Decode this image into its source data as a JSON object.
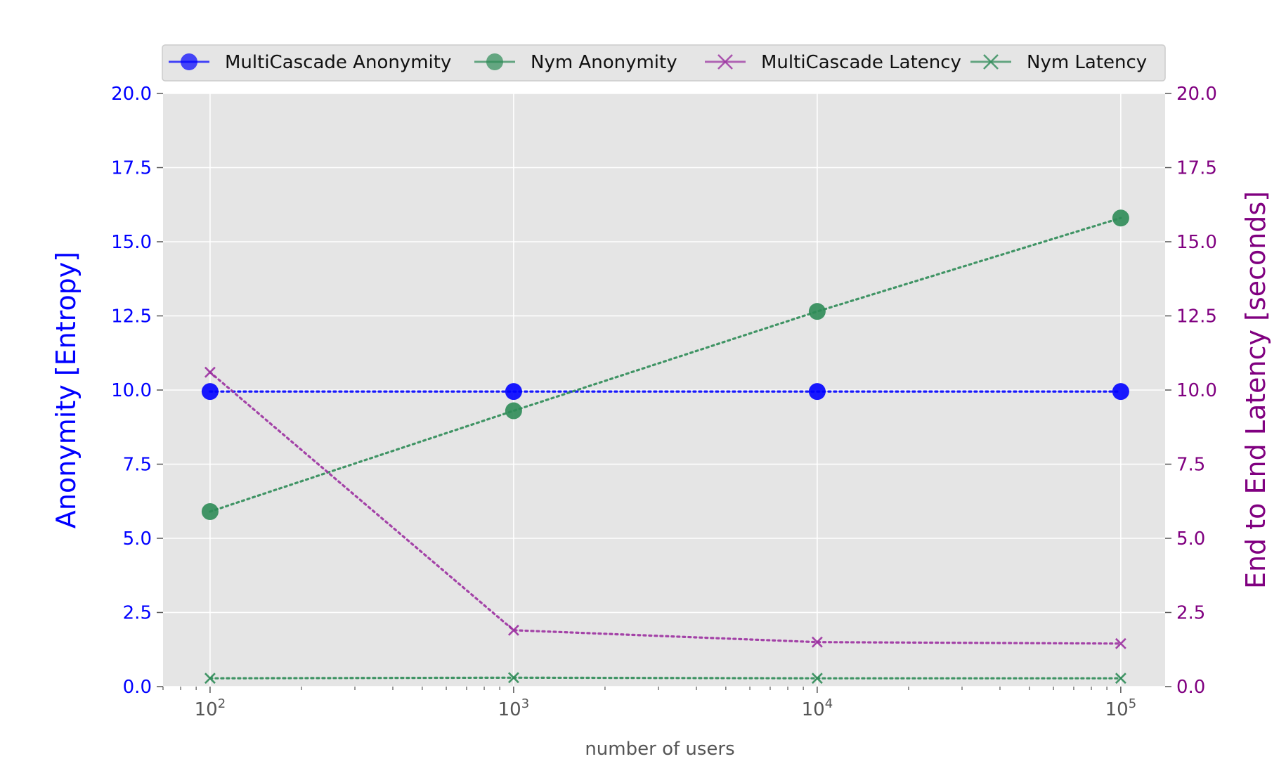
{
  "chart_data": {
    "type": "line",
    "xlabel": "number of users",
    "ylabel_left": "Anonymity [Entropy]",
    "ylabel_right": "End to End Latency [seconds]",
    "x_scale": "log",
    "xlim": [
      70,
      140000
    ],
    "x": [
      100,
      1000,
      10000,
      100000
    ],
    "x_tick_values": [
      100,
      1000,
      10000,
      100000
    ],
    "x_ticks": [
      {
        "base": "10",
        "exp": "2"
      },
      {
        "base": "10",
        "exp": "3"
      },
      {
        "base": "10",
        "exp": "4"
      },
      {
        "base": "10",
        "exp": "5"
      }
    ],
    "ylim_left": [
      0,
      20
    ],
    "ylim_right": [
      0,
      20
    ],
    "y_tick_values": [
      0,
      2.5,
      5,
      7.5,
      10,
      12.5,
      15,
      17.5,
      20
    ],
    "y_ticks_left": [
      "0.0",
      "2.5",
      "5.0",
      "7.5",
      "10.0",
      "12.5",
      "15.0",
      "17.5",
      "20.0"
    ],
    "y_ticks_right": [
      "0.0",
      "2.5",
      "5.0",
      "7.5",
      "10.0",
      "12.5",
      "15.0",
      "17.5",
      "20.0"
    ],
    "grid": true,
    "legend_position": "top",
    "series": [
      {
        "name": "MultiCascade Anonymity",
        "axis": "left",
        "marker": "circle",
        "color": "#0000ff",
        "values": [
          9.95,
          9.95,
          9.95,
          9.95
        ]
      },
      {
        "name": "Nym Anonymity",
        "axis": "left",
        "marker": "circle",
        "color": "#2e8b57",
        "values": [
          5.9,
          9.3,
          12.65,
          15.8
        ]
      },
      {
        "name": "MultiCascade Latency",
        "axis": "right",
        "marker": "x",
        "color": "#9b30a0",
        "values": [
          10.6,
          1.9,
          1.5,
          1.45
        ]
      },
      {
        "name": "Nym Latency",
        "axis": "right",
        "marker": "x",
        "color": "#2e8b57",
        "values": [
          0.28,
          0.3,
          0.28,
          0.28
        ]
      }
    ]
  },
  "colors": {
    "plot_background": "#e5e5e5",
    "grid": "#ffffff",
    "left_axis": "#0000ff",
    "right_axis": "#800080",
    "x_axis": "#555555"
  }
}
